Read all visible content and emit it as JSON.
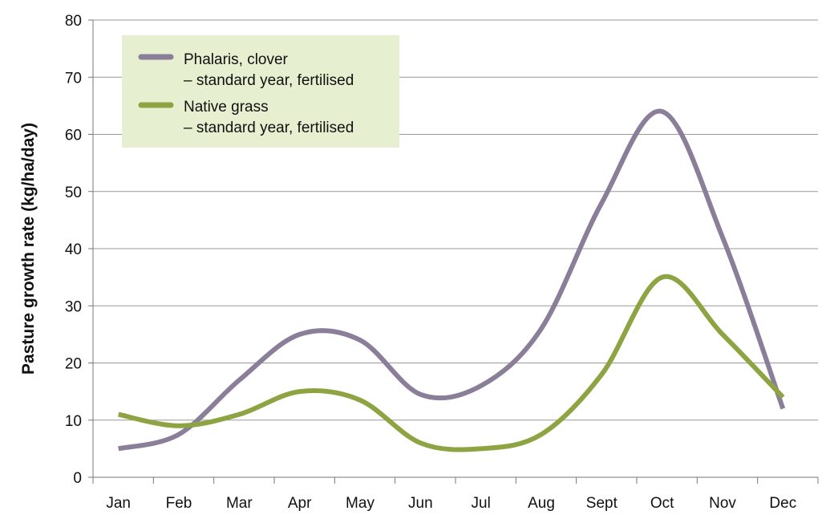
{
  "chart_data": {
    "type": "line",
    "title": "",
    "xlabel": "",
    "ylabel": "Pasture growth rate (kg/ha/day)",
    "ylim": [
      0,
      80
    ],
    "yticks": [
      0,
      10,
      20,
      30,
      40,
      50,
      60,
      70,
      80
    ],
    "grid": true,
    "legend_position": "top-left",
    "categories": [
      "Jan",
      "Feb",
      "Mar",
      "Apr",
      "May",
      "Jun",
      "Jul",
      "Aug",
      "Sept",
      "Oct",
      "Nov",
      "Dec"
    ],
    "series": [
      {
        "name": "Phalaris, clover",
        "name_line2": "– standard year, fertilised",
        "color": "#8a7e99",
        "values": [
          5,
          7.5,
          17,
          25,
          24,
          14.5,
          16,
          26,
          48,
          64,
          42,
          12
        ]
      },
      {
        "name": "Native grass",
        "name_line2": "– standard year, fertilised",
        "color": "#8ea443",
        "values": [
          11,
          9,
          11,
          15,
          13.5,
          6,
          5,
          7.5,
          18,
          35,
          25,
          14
        ]
      }
    ],
    "legend_background": "#e6efd0"
  }
}
